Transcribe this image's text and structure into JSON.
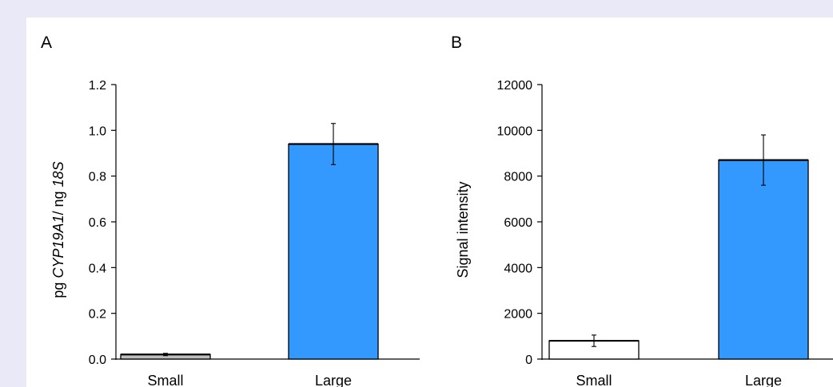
{
  "chart_data": [
    {
      "type": "bar",
      "panel_label": "A",
      "categories": [
        "Small",
        "Large"
      ],
      "values": [
        0.02,
        0.94
      ],
      "errors": [
        0.005,
        0.09
      ],
      "bar_colors": [
        "#bdbdbd",
        "#3399ff"
      ],
      "ylim": [
        0,
        1.2
      ],
      "yticks": [
        0.0,
        0.2,
        0.4,
        0.6,
        0.8,
        1.0,
        1.2
      ],
      "ytick_labels": [
        "0.0",
        "0.2",
        "0.4",
        "0.6",
        "0.8",
        "1.0",
        "1.2"
      ],
      "ylabel_parts": [
        {
          "text": "pg ",
          "italic": false
        },
        {
          "text": "CYP19A1",
          "italic": true
        },
        {
          "text": "/ ng ",
          "italic": false
        },
        {
          "text": "18S",
          "italic": true
        }
      ],
      "grid": false,
      "legend": "none"
    },
    {
      "type": "bar",
      "panel_label": "B",
      "categories": [
        "Small",
        "Large"
      ],
      "values": [
        800,
        8700
      ],
      "errors": [
        250,
        1100
      ],
      "bar_colors": [
        "#ffffff",
        "#3399ff"
      ],
      "ylim": [
        0,
        12000
      ],
      "yticks": [
        0,
        2000,
        4000,
        6000,
        8000,
        10000,
        12000
      ],
      "ytick_labels": [
        "0",
        "2000",
        "4000",
        "6000",
        "8000",
        "10000",
        "12000"
      ],
      "ylabel_parts": [
        {
          "text": "Signal intensity",
          "italic": false
        }
      ],
      "grid": false,
      "legend": "none"
    }
  ]
}
